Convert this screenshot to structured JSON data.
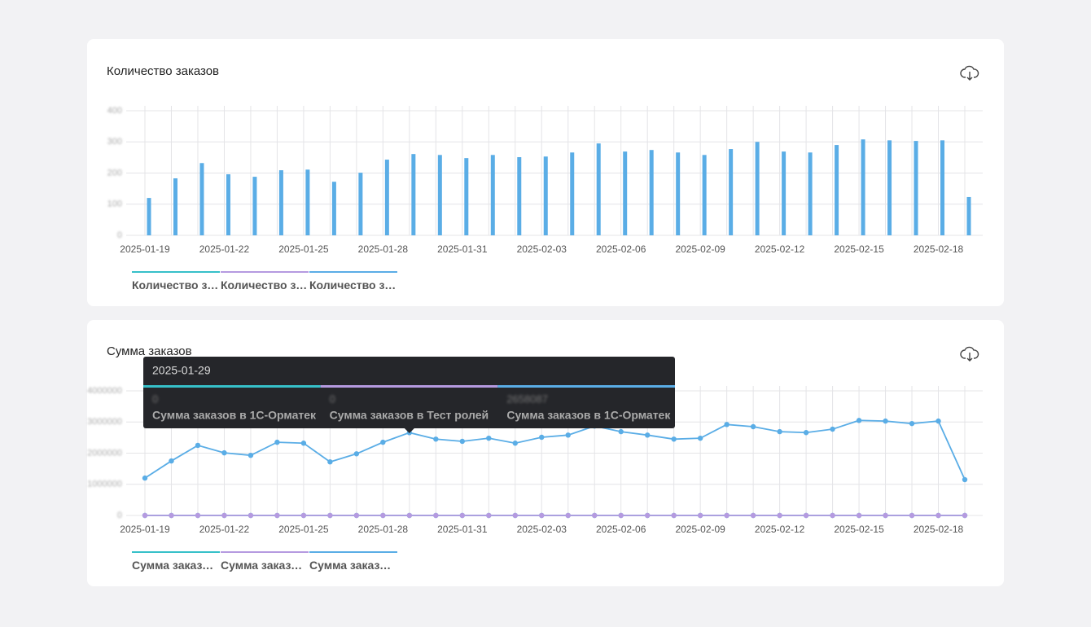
{
  "chart_data": [
    {
      "type": "bar",
      "title": "Количество заказов",
      "categories": [
        "2025-01-19",
        null,
        null,
        "2025-01-22",
        null,
        null,
        "2025-01-25",
        null,
        null,
        "2025-01-28",
        null,
        null,
        "2025-01-31",
        null,
        null,
        "2025-02-03",
        null,
        null,
        "2025-02-06",
        null,
        null,
        "2025-02-09",
        null,
        null,
        "2025-02-12",
        null,
        null,
        "2025-02-15",
        null,
        null,
        "2025-02-18",
        null
      ],
      "ylim": [
        0,
        400
      ],
      "yticks": [
        0,
        100,
        200,
        300,
        400
      ],
      "grid": true,
      "series": [
        {
          "name": "Количество за…",
          "color": "#36c0c9",
          "values": [
            0,
            0,
            0,
            0,
            0,
            0,
            0,
            0,
            0,
            0,
            0,
            0,
            0,
            0,
            0,
            0,
            0,
            0,
            0,
            0,
            0,
            0,
            0,
            0,
            0,
            0,
            0,
            0,
            0,
            0,
            0,
            0
          ]
        },
        {
          "name": "Количество за…",
          "color": "#b59ae0",
          "values": [
            0,
            0,
            0,
            0,
            0,
            0,
            0,
            0,
            0,
            0,
            0,
            0,
            0,
            0,
            0,
            0,
            0,
            0,
            0,
            0,
            0,
            0,
            0,
            0,
            0,
            0,
            0,
            0,
            0,
            0,
            0,
            0
          ]
        },
        {
          "name": "Количество за…",
          "color": "#5aade6",
          "values": [
            120,
            183,
            232,
            196,
            188,
            209,
            211,
            172,
            201,
            243,
            261,
            258,
            248,
            258,
            251,
            253,
            266,
            295,
            269,
            274,
            266,
            258,
            277,
            300,
            269,
            266,
            290,
            308,
            305,
            303,
            305,
            123
          ]
        }
      ]
    },
    {
      "type": "line",
      "title": "Сумма заказов",
      "categories": [
        "2025-01-19",
        null,
        null,
        "2025-01-22",
        null,
        null,
        "2025-01-25",
        null,
        null,
        "2025-01-28",
        null,
        null,
        "2025-01-31",
        null,
        null,
        "2025-02-03",
        null,
        null,
        "2025-02-06",
        null,
        null,
        "2025-02-09",
        null,
        null,
        "2025-02-12",
        null,
        null,
        "2025-02-15",
        null,
        null,
        "2025-02-18",
        null
      ],
      "ylim": [
        0,
        4000000
      ],
      "yticks": [
        0,
        1000000,
        2000000,
        3000000,
        4000000
      ],
      "grid": true,
      "series": [
        {
          "name": "Сумма заказов в 1С-Орматек",
          "color": "#36c0c9",
          "values": [
            0,
            0,
            0,
            0,
            0,
            0,
            0,
            0,
            0,
            0,
            0,
            0,
            0,
            0,
            0,
            0,
            0,
            0,
            0,
            0,
            0,
            0,
            0,
            0,
            0,
            0,
            0,
            0,
            0,
            0,
            0,
            0
          ]
        },
        {
          "name": "Сумма заказов в Тест ролей",
          "color": "#b59ae0",
          "values": [
            0,
            0,
            0,
            0,
            0,
            0,
            0,
            0,
            0,
            0,
            0,
            0,
            0,
            0,
            0,
            0,
            0,
            0,
            0,
            0,
            0,
            0,
            0,
            0,
            0,
            0,
            0,
            0,
            0,
            0,
            0,
            0
          ]
        },
        {
          "name": "Сумма заказов в 1С-Орматек",
          "color": "#5aade6",
          "values": [
            1200000,
            1750000,
            2250000,
            2010000,
            1930000,
            2350000,
            2320000,
            1720000,
            1980000,
            2350000,
            2658087,
            2450000,
            2380000,
            2480000,
            2320000,
            2510000,
            2580000,
            2870000,
            2690000,
            2580000,
            2450000,
            2480000,
            2920000,
            2850000,
            2690000,
            2660000,
            2770000,
            3050000,
            3030000,
            2950000,
            3030000,
            1150000
          ]
        }
      ],
      "tooltip": {
        "title": "2025-01-29"
      }
    }
  ]
}
